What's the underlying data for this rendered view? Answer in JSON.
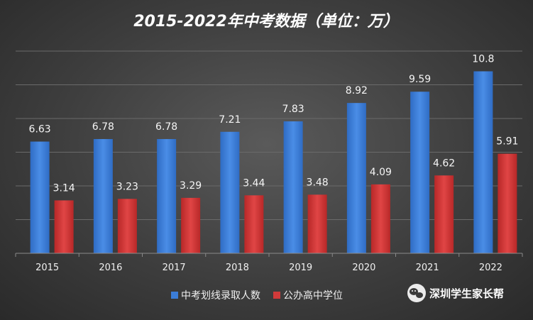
{
  "chart_data": {
    "type": "bar",
    "title": "2015-2022年中考数据（单位：万）",
    "categories": [
      "2015",
      "2016",
      "2017",
      "2018",
      "2019",
      "2020",
      "2021",
      "2022"
    ],
    "series": [
      {
        "name": "中考划线录取人数",
        "color": "#3b7dd8",
        "values": [
          6.63,
          6.78,
          6.78,
          7.21,
          7.83,
          8.92,
          9.59,
          10.8
        ],
        "labels": [
          "6.63",
          "6.78",
          "6.78",
          "7.21",
          "7.83",
          "8.92",
          "9.59",
          "10.8"
        ]
      },
      {
        "name": "公办高中学位",
        "color": "#d03a3a",
        "values": [
          3.14,
          3.23,
          3.29,
          3.44,
          3.48,
          4.09,
          4.62,
          5.91
        ],
        "labels": [
          "3.14",
          "3.23",
          "3.29",
          "3.44",
          "3.48",
          "4.09",
          "4.62",
          "5.91"
        ]
      }
    ],
    "ylim": [
      0,
      12
    ],
    "grid": true,
    "legend": "bottom"
  },
  "watermark": {
    "text": "深圳学生家长帮",
    "icon": "wechat-icon"
  }
}
